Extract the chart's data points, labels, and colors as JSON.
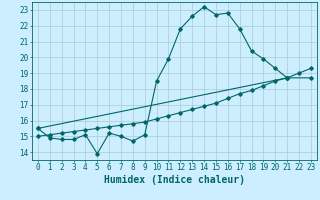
{
  "xlabel": "Humidex (Indice chaleur)",
  "bg_color": "#cceeff",
  "grid_color": "#aacccc",
  "line_color": "#006666",
  "xlim": [
    -0.5,
    23.5
  ],
  "ylim": [
    13.5,
    23.5
  ],
  "x_ticks": [
    0,
    1,
    2,
    3,
    4,
    5,
    6,
    7,
    8,
    9,
    10,
    11,
    12,
    13,
    14,
    15,
    16,
    17,
    18,
    19,
    20,
    21,
    22,
    23
  ],
  "y_ticks": [
    14,
    15,
    16,
    17,
    18,
    19,
    20,
    21,
    22,
    23
  ],
  "series": [
    {
      "x": [
        0,
        1,
        2,
        3,
        4,
        5,
        6,
        7,
        8,
        9,
        10,
        11,
        12,
        13,
        14,
        15,
        16,
        17,
        18,
        19,
        20,
        21
      ],
      "y": [
        15.5,
        14.9,
        14.8,
        14.8,
        15.1,
        13.9,
        15.2,
        15.0,
        14.7,
        15.1,
        18.5,
        19.9,
        21.8,
        22.6,
        23.2,
        22.7,
        22.8,
        21.8,
        20.4,
        19.9,
        19.3,
        18.7
      ]
    },
    {
      "x": [
        0,
        1,
        2,
        3,
        4,
        5,
        6,
        7,
        8,
        9,
        10,
        11,
        12,
        13,
        14,
        15,
        16,
        17,
        18,
        19,
        20,
        21,
        22,
        23
      ],
      "y": [
        15.0,
        15.1,
        15.2,
        15.3,
        15.4,
        15.5,
        15.6,
        15.7,
        15.8,
        15.9,
        16.1,
        16.3,
        16.5,
        16.7,
        16.9,
        17.1,
        17.4,
        17.7,
        17.9,
        18.2,
        18.5,
        18.7,
        19.0,
        19.3
      ]
    },
    {
      "x": [
        0,
        21,
        23
      ],
      "y": [
        15.5,
        18.7,
        18.7
      ]
    }
  ],
  "font_color": "#006666",
  "tick_fontsize": 5.5,
  "label_fontsize": 7
}
